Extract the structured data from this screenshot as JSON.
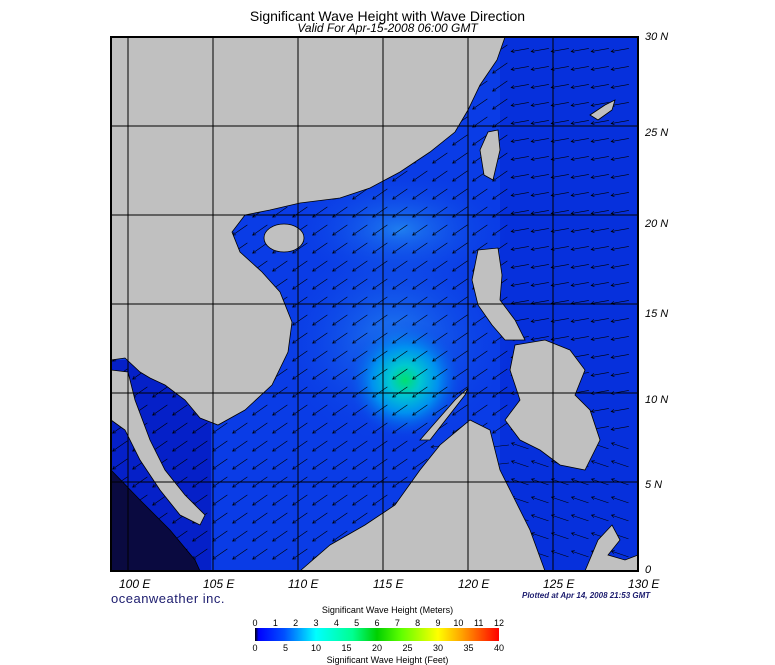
{
  "title": "Significant Wave Height with Wave Direction",
  "subtitle": "Valid For Apr-15-2008 06:00 GMT",
  "brand": "oceanweather inc.",
  "plotted": "Plotted at Apr 14, 2008 21:53 GMT",
  "lon_labels": [
    "100 E",
    "105 E",
    "110 E",
    "115 E",
    "120 E",
    "125 E",
    "130 E"
  ],
  "lat_labels": [
    "30 N",
    "25 N",
    "20 N",
    "15 N",
    "10 N",
    "5 N",
    "0"
  ],
  "colorbar": {
    "title_meters": "Significant Wave Height (Meters)",
    "title_feet": "Significant Wave Height (Feet)",
    "meters_ticks": [
      "0",
      "1",
      "2",
      "3",
      "4",
      "5",
      "6",
      "7",
      "8",
      "9",
      "10",
      "11",
      "12"
    ],
    "feet_ticks": [
      "0",
      "5",
      "10",
      "15",
      "20",
      "25",
      "30",
      "35",
      "40"
    ]
  },
  "colors": {
    "ocean": "#0a3ce6",
    "land": "#c0c0c0",
    "peak": "#00e070"
  }
}
